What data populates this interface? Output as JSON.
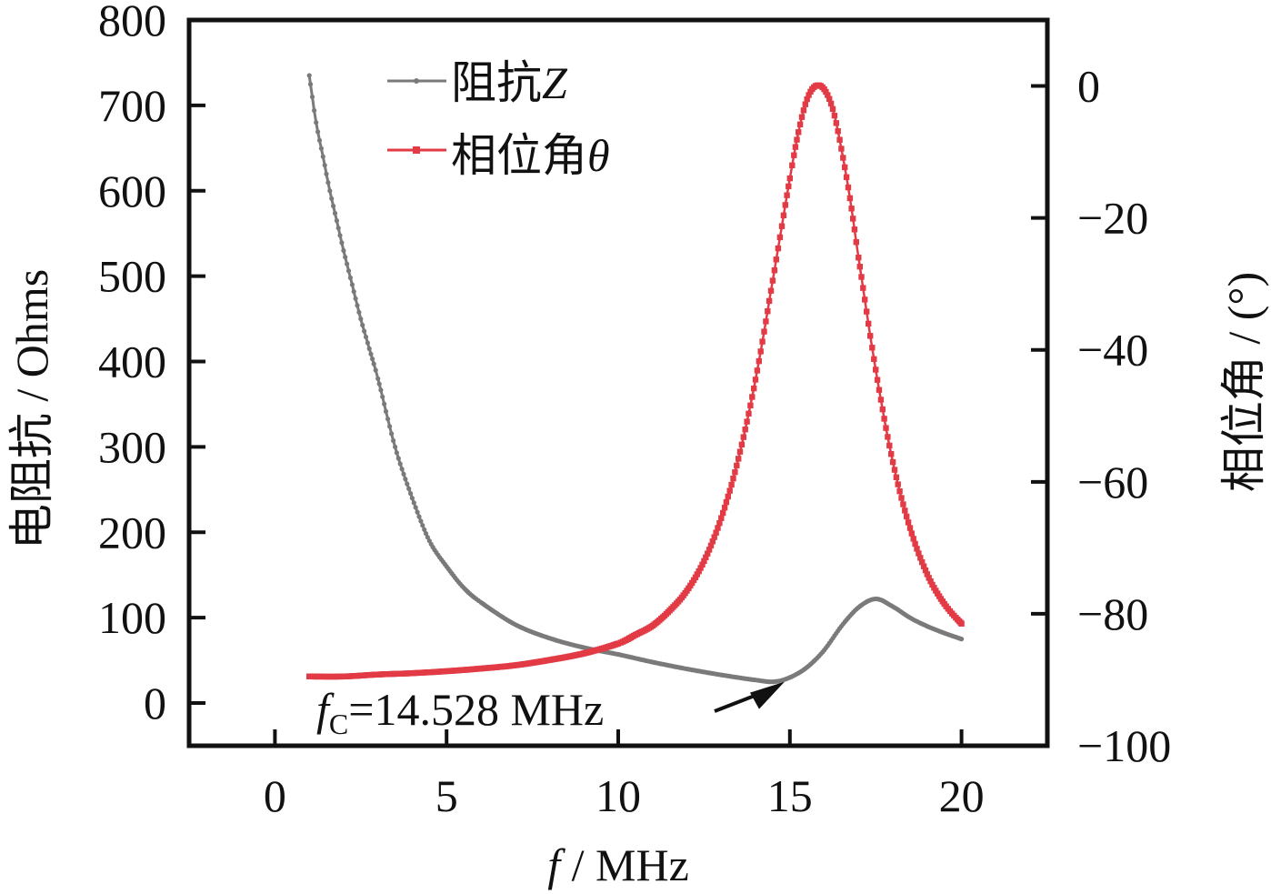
{
  "chart_data": {
    "type": "line",
    "title": "",
    "xlabel": "f / MHz",
    "xlabel_italic_part": "f",
    "xlabel_rest": " / MHz",
    "ylabel_left": "电阻抗 / Ohms",
    "ylabel_right": "相位角 / (°)",
    "xlim": [
      -2.5,
      22.5
    ],
    "ylim_left": [
      -50,
      800
    ],
    "ylim_right": [
      -100,
      10
    ],
    "x_ticks": [
      0,
      5,
      10,
      15,
      20
    ],
    "x_tick_labels": [
      "0",
      "5",
      "10",
      "15",
      "20"
    ],
    "y_left_ticks": [
      0,
      100,
      200,
      300,
      400,
      500,
      600,
      700,
      800
    ],
    "y_left_tick_labels": [
      "0",
      "100",
      "200",
      "300",
      "400",
      "500",
      "600",
      "700",
      "800"
    ],
    "y_right_ticks": [
      0,
      -20,
      -40,
      -60,
      -80,
      -100
    ],
    "y_right_tick_labels": [
      "0",
      "−20",
      "−40",
      "−60",
      "−80",
      "−100"
    ],
    "grid": false,
    "legend_position": "top-center",
    "colors": {
      "impedance": "#7a7a7a",
      "phase": "#e23b45",
      "axis": "#111111"
    },
    "series": [
      {
        "name": "阻抗Z",
        "legend_label": "阻抗",
        "legend_symbol": "Z",
        "axis": "left",
        "marker": "circle",
        "x": [
          1.0,
          1.2,
          1.4,
          1.6,
          1.8,
          2.0,
          2.25,
          2.5,
          2.75,
          3.0,
          3.5,
          4.0,
          4.5,
          5.0,
          5.5,
          6.0,
          7.0,
          8.0,
          9.0,
          10.0,
          11.0,
          12.0,
          13.0,
          14.0,
          14.528,
          15.0,
          15.5,
          16.0,
          16.5,
          17.0,
          17.5,
          18.0,
          18.5,
          19.0,
          19.5,
          20.0
        ],
        "y": [
          735,
          680,
          640,
          600,
          565,
          530,
          490,
          450,
          415,
          380,
          300,
          240,
          190,
          160,
          135,
          118,
          92,
          76,
          65,
          57,
          48,
          40,
          33,
          27,
          25,
          30,
          42,
          62,
          90,
          112,
          122,
          113,
          100,
          90,
          82,
          75
        ]
      },
      {
        "name": "相位角θ",
        "legend_label": "相位角",
        "legend_symbol": "θ",
        "axis": "right",
        "marker": "square",
        "x": [
          1.0,
          2.0,
          3.0,
          4.0,
          5.0,
          6.0,
          7.0,
          8.0,
          9.0,
          10.0,
          10.5,
          11.0,
          11.5,
          12.0,
          12.5,
          13.0,
          13.5,
          14.0,
          14.5,
          15.0,
          15.25,
          15.5,
          15.75,
          16.0,
          16.25,
          16.5,
          16.75,
          17.0,
          17.5,
          18.0,
          18.5,
          19.0,
          19.5,
          20.0
        ],
        "y": [
          -89.5,
          -89.5,
          -89.2,
          -89.0,
          -88.7,
          -88.3,
          -87.8,
          -87.0,
          -86.0,
          -84.5,
          -83.2,
          -81.8,
          -79.5,
          -76.5,
          -72.0,
          -65.5,
          -56.5,
          -44.5,
          -29.5,
          -14.0,
          -7.0,
          -2.0,
          0.0,
          -0.5,
          -3.5,
          -9.5,
          -17.0,
          -26.0,
          -43.0,
          -57.0,
          -67.0,
          -74.0,
          -78.5,
          -81.5
        ]
      }
    ],
    "annotation": {
      "label_symbol": "f",
      "label_subscript": "C",
      "label_value": "=14.528 MHz",
      "x": 14.528,
      "y": 25
    }
  }
}
